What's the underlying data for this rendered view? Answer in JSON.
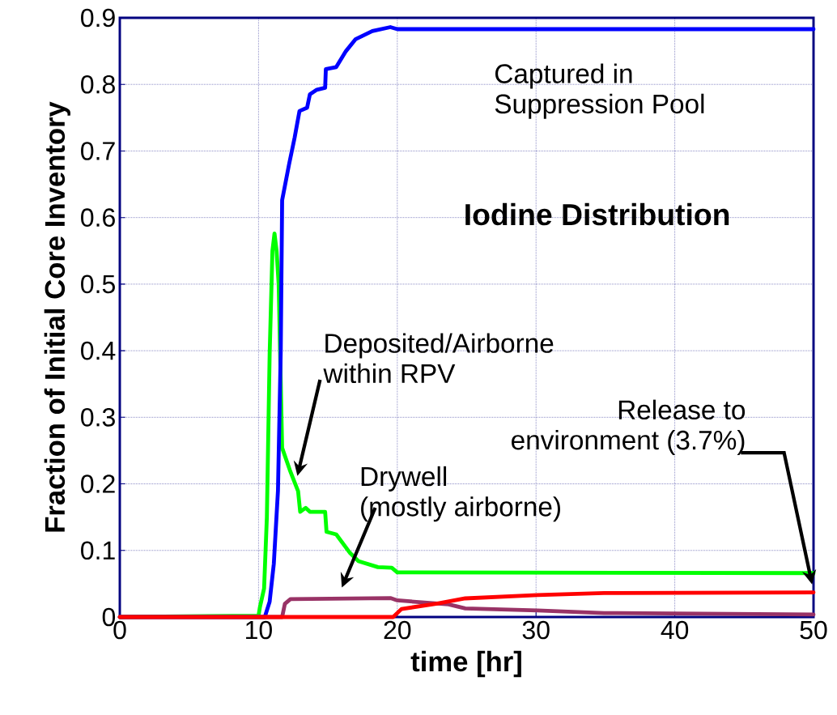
{
  "chart_data": {
    "type": "line",
    "title": "Iodine Distribution",
    "xlabel": "time [hr]",
    "ylabel": "Fraction of Initial Core Inventory",
    "xlim": [
      0,
      50
    ],
    "ylim": [
      0,
      0.9
    ],
    "xticks": [
      0,
      10,
      20,
      30,
      40,
      50
    ],
    "yticks": [
      0,
      0.1,
      0.2,
      0.3,
      0.4,
      0.5,
      0.6,
      0.7,
      0.8,
      0.9
    ],
    "grid": true,
    "line_style": "solid",
    "annotations": [
      "Deposited/Airborne within RPV",
      {
        "text": "Drywell (mostly airborne)",
        "x": 16,
        "y": 0.028
      },
      "Release to environment (3.7%)"
    ],
    "series": [
      {
        "color": "#00ff00",
        "x": [
          0,
          10.0,
          10.1,
          10.4,
          10.6,
          10.8,
          11.0,
          11.15,
          11.3,
          11.45,
          11.6,
          11.7,
          12.25,
          12.85,
          13.0,
          13.4,
          13.7,
          14.8,
          14.9,
          15.6,
          16.6,
          17.2,
          18.6,
          19.6,
          20,
          50
        ],
        "values": [
          0,
          0.002,
          0.015,
          0.043,
          0.15,
          0.395,
          0.55,
          0.576,
          0.55,
          0.5,
          null,
          0.254,
          0.221,
          0.189,
          0.158,
          0.164,
          0.158,
          0.158,
          0.128,
          0.124,
          0.096,
          0.084,
          0.075,
          0.074,
          0.067,
          0.066
        ]
      },
      {
        "name": "Captured in Suppression Pool",
        "color": "#0000ff",
        "x": [
          0,
          10.45,
          10.8,
          11.1,
          11.4,
          11.6,
          11.7,
          12.2,
          12.6,
          12.95,
          13.5,
          13.7,
          14.2,
          14.8,
          14.85,
          15.6,
          16.3,
          17,
          18.2,
          19.5,
          20,
          50
        ],
        "values": [
          0,
          0,
          0.023,
          0.08,
          0.19,
          0.4,
          0.626,
          0.68,
          0.72,
          0.76,
          0.765,
          0.785,
          0.792,
          0.795,
          0.823,
          0.826,
          0.85,
          0.868,
          0.88,
          0.886,
          0.883,
          0.883
        ]
      },
      {
        "color": "#993366",
        "x": [
          0,
          11.7,
          11.9,
          12.3,
          19.5,
          20,
          23.7,
          24.9,
          30.1,
          34.9,
          50
        ],
        "values": [
          0,
          0,
          0.02,
          0.027,
          0.0285,
          0.025,
          0.019,
          0.013,
          0.01,
          0.006,
          0.0037
        ]
      },
      {
        "color": "#ff0000",
        "x": [
          0,
          19.7,
          20.3,
          22.8,
          24.9,
          30.1,
          34.9,
          50
        ],
        "values": [
          0,
          0,
          0.012,
          0.02,
          0.028,
          0.033,
          0.036,
          0.037
        ]
      }
    ]
  }
}
